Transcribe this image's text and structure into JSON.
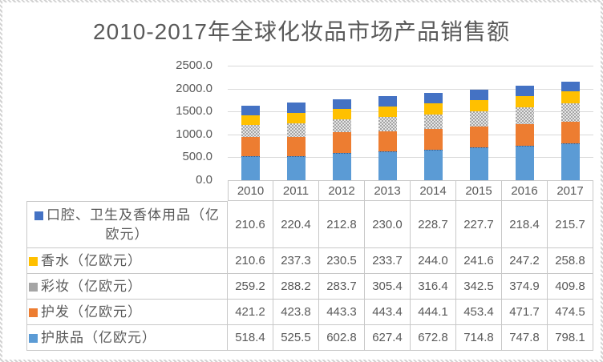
{
  "title": "2010-2017年全球化妆品市场产品销售额",
  "chart_data": {
    "type": "bar",
    "stacked": true,
    "title": "2010-2017年全球化妆品市场产品销售额",
    "categories": [
      "2010",
      "2011",
      "2012",
      "2013",
      "2014",
      "2015",
      "2016",
      "2017"
    ],
    "series": [
      {
        "name": "护肤品（亿欧元）",
        "color": "#5B9BD5",
        "pattern": "solid",
        "values": [
          518.4,
          525.5,
          602.8,
          627.4,
          672.8,
          714.8,
          747.8,
          798.1
        ]
      },
      {
        "name": "护发（亿欧元）",
        "color": "#ED7D31",
        "pattern": "solid",
        "values": [
          421.2,
          423.8,
          443.3,
          443.4,
          444.1,
          453.4,
          471.7,
          474.5
        ]
      },
      {
        "name": "彩妆（亿欧元）",
        "color": "#A5A5A5",
        "pattern": "checker",
        "values": [
          259.2,
          288.2,
          283.7,
          305.4,
          316.4,
          342.5,
          374.9,
          409.8
        ]
      },
      {
        "name": "香水（亿欧元）",
        "color": "#FFC000",
        "pattern": "solid",
        "values": [
          210.6,
          237.3,
          230.5,
          233.7,
          244.0,
          241.6,
          247.2,
          258.8
        ]
      },
      {
        "name": "口腔、卫生及香体用品（亿欧元）",
        "color": "#4472C4",
        "pattern": "solid",
        "values": [
          210.6,
          220.4,
          212.8,
          230.0,
          228.7,
          227.7,
          218.4,
          215.7
        ]
      }
    ],
    "ylim": [
      0,
      2500
    ],
    "ytick_step": 500,
    "ytick_labels": [
      "2500.0",
      "2000.0",
      "1500.0",
      "1000.0",
      "500.0",
      "0.0"
    ],
    "grid": true,
    "legend_position": "data-table-below",
    "value_decimals": 1
  },
  "colors": {
    "text": "#595959",
    "gridline": "#D9D9D9",
    "table_border": "#C8C8C8"
  }
}
